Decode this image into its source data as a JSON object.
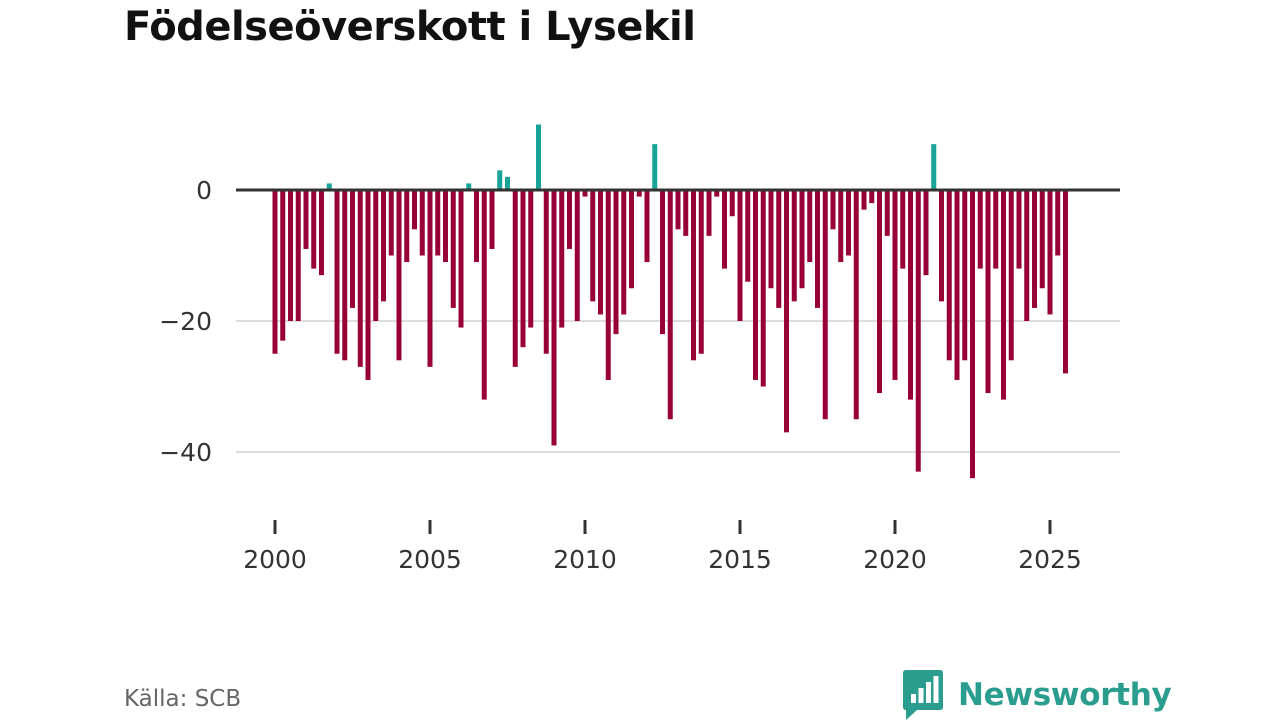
{
  "title": "Födelseöverskott i Lysekil",
  "source": "Källa: SCB",
  "brand": {
    "name": "Newsworthy",
    "icon": "newsworthy-logo-icon"
  },
  "colors": {
    "positive": "#17a398",
    "negative": "#990038",
    "grid": "#dddddd",
    "zero_line": "#333333",
    "axis_text": "#333333",
    "brand": "#2a9d8f"
  },
  "chart_data": {
    "type": "bar",
    "title": "Födelseöverskott i Lysekil",
    "xlabel": "",
    "ylabel": "",
    "x_ticks": [
      2000,
      2005,
      2010,
      2015,
      2020,
      2025
    ],
    "x_tick_labels": [
      "2000",
      "2005",
      "2010",
      "2015",
      "2020",
      "2025"
    ],
    "x_range": [
      1998.8,
      2027.3
    ],
    "y_ticks": [
      0,
      -20,
      -40
    ],
    "y_tick_labels": [
      "0",
      "−20",
      "−40"
    ],
    "ylim": [
      -48,
      11
    ],
    "grid": true,
    "start": 2000,
    "period": "quarter",
    "values": [
      -25,
      -23,
      -20,
      -20,
      -9,
      -12,
      -13,
      1,
      -25,
      -26,
      -18,
      -27,
      -29,
      -20,
      -17,
      -10,
      -26,
      -11,
      -6,
      -10,
      -27,
      -10,
      -11,
      -18,
      -21,
      1,
      -11,
      -32,
      -9,
      3,
      2,
      -27,
      -24,
      -21,
      10,
      -25,
      -39,
      -21,
      -9,
      -20,
      -1,
      -17,
      -19,
      -29,
      -22,
      -19,
      -15,
      -1,
      -11,
      7,
      -22,
      -35,
      -6,
      -7,
      -26,
      -25,
      -7,
      -1,
      -12,
      -4,
      -20,
      -14,
      -29,
      -30,
      -15,
      -18,
      -37,
      -17,
      -15,
      -11,
      -18,
      -35,
      -6,
      -11,
      -10,
      -35,
      -3,
      -2,
      -31,
      -7,
      -29,
      -12,
      -32,
      -43,
      -13,
      7,
      -17,
      -26,
      -29,
      -26,
      -44,
      -12,
      -31,
      -12,
      -32,
      -26,
      -12,
      -20,
      -18,
      -15,
      -19,
      -10,
      -28
    ]
  }
}
